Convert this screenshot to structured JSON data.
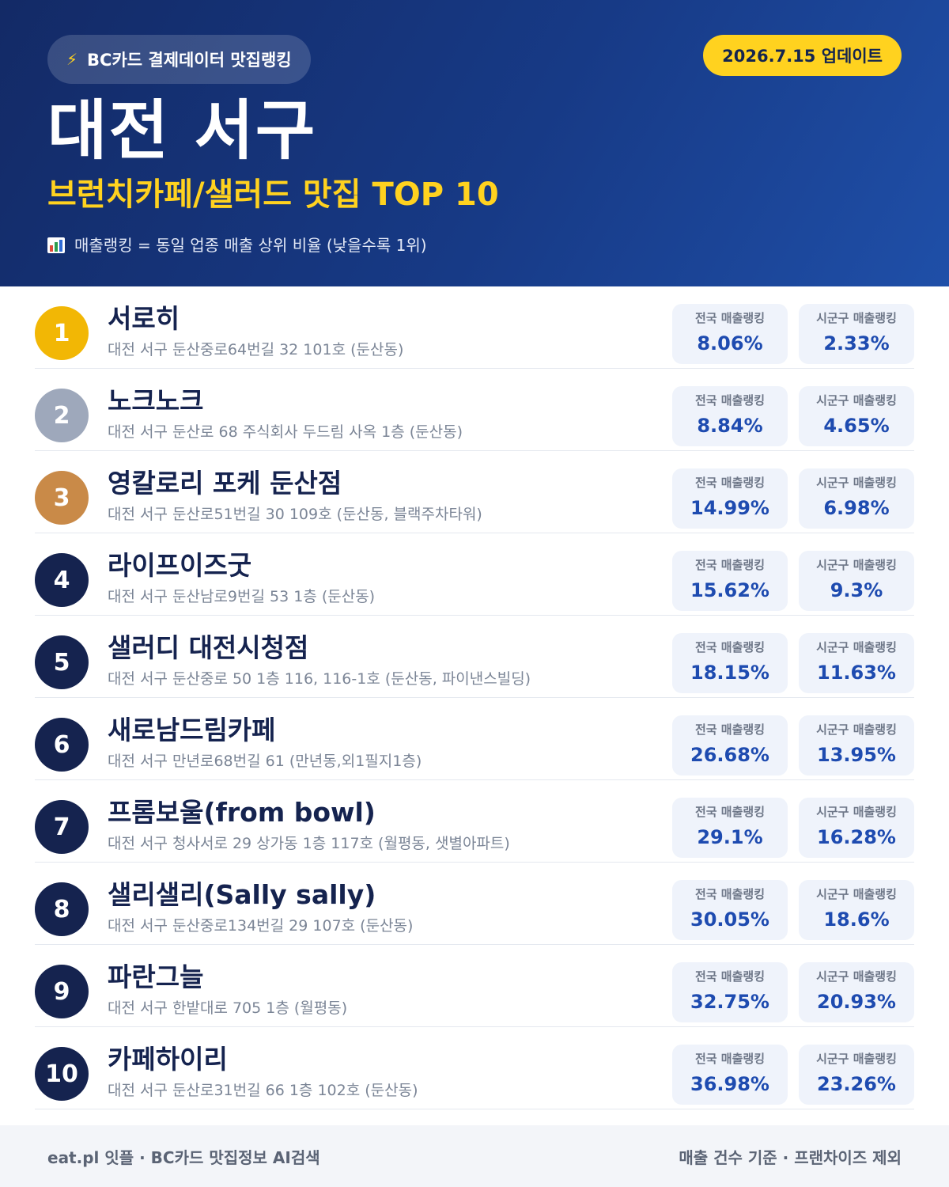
{
  "header": {
    "tag": "BC카드 결제데이터 맛집랭킹",
    "tag_icon": "lightning-icon",
    "update": "2026.7.15 업데이트",
    "title": "대전 서구",
    "subtitle": "브런치카페/샐러드 맛집 TOP 10",
    "note_icon": "bar-chart-icon",
    "note": "매출랭킹 = 동일 업종 매출 상위 비율 (낮을수록 1위)"
  },
  "labels": {
    "national": "전국 매출랭킹",
    "district": "시군구 매출랭킹"
  },
  "colors": {
    "header_bg": "#173a86",
    "accent_yellow": "#ffd21f",
    "gold": "#f2b705",
    "silver": "#9ea8bb",
    "bronze": "#c98a48",
    "navy": "#15234f",
    "value_blue": "#1e4bb0"
  },
  "items": [
    {
      "rank": "1",
      "name": "서로히",
      "address": "대전 서구 둔산중로64번길 32 101호 (둔산동)",
      "national": "8.06%",
      "district": "2.33%"
    },
    {
      "rank": "2",
      "name": "노크노크",
      "address": "대전 서구 둔산로 68 주식회사 두드림 사옥 1층 (둔산동)",
      "national": "8.84%",
      "district": "4.65%"
    },
    {
      "rank": "3",
      "name": "영칼로리 포케 둔산점",
      "address": "대전 서구 둔산로51번길 30 109호 (둔산동, 블랙주차타워)",
      "national": "14.99%",
      "district": "6.98%"
    },
    {
      "rank": "4",
      "name": "라이프이즈굿",
      "address": "대전 서구 둔산남로9번길 53 1층 (둔산동)",
      "national": "15.62%",
      "district": "9.3%"
    },
    {
      "rank": "5",
      "name": "샐러디 대전시청점",
      "address": "대전 서구 둔산중로 50 1층 116, 116-1호 (둔산동, 파이낸스빌딩)",
      "national": "18.15%",
      "district": "11.63%"
    },
    {
      "rank": "6",
      "name": "새로남드림카페",
      "address": "대전 서구 만년로68번길 61 (만년동,외1필지1층)",
      "national": "26.68%",
      "district": "13.95%"
    },
    {
      "rank": "7",
      "name": "프롬보울(from bowl)",
      "address": "대전 서구 청사서로 29 상가동 1층 117호 (월평동, 샛별아파트)",
      "national": "29.1%",
      "district": "16.28%"
    },
    {
      "rank": "8",
      "name": "샐리샐리(Sally sally)",
      "address": "대전 서구 둔산중로134번길 29 107호 (둔산동)",
      "national": "30.05%",
      "district": "18.6%"
    },
    {
      "rank": "9",
      "name": "파란그늘",
      "address": "대전 서구 한밭대로 705 1층 (월평동)",
      "national": "32.75%",
      "district": "20.93%"
    },
    {
      "rank": "10",
      "name": "카페하이리",
      "address": "대전 서구 둔산로31번길 66 1층 102호 (둔산동)",
      "national": "36.98%",
      "district": "23.26%"
    }
  ],
  "footer": {
    "left": "eat.pl 잇플 · BC카드 맛집정보 AI검색",
    "right": "매출 건수 기준 · 프랜차이즈 제외"
  }
}
